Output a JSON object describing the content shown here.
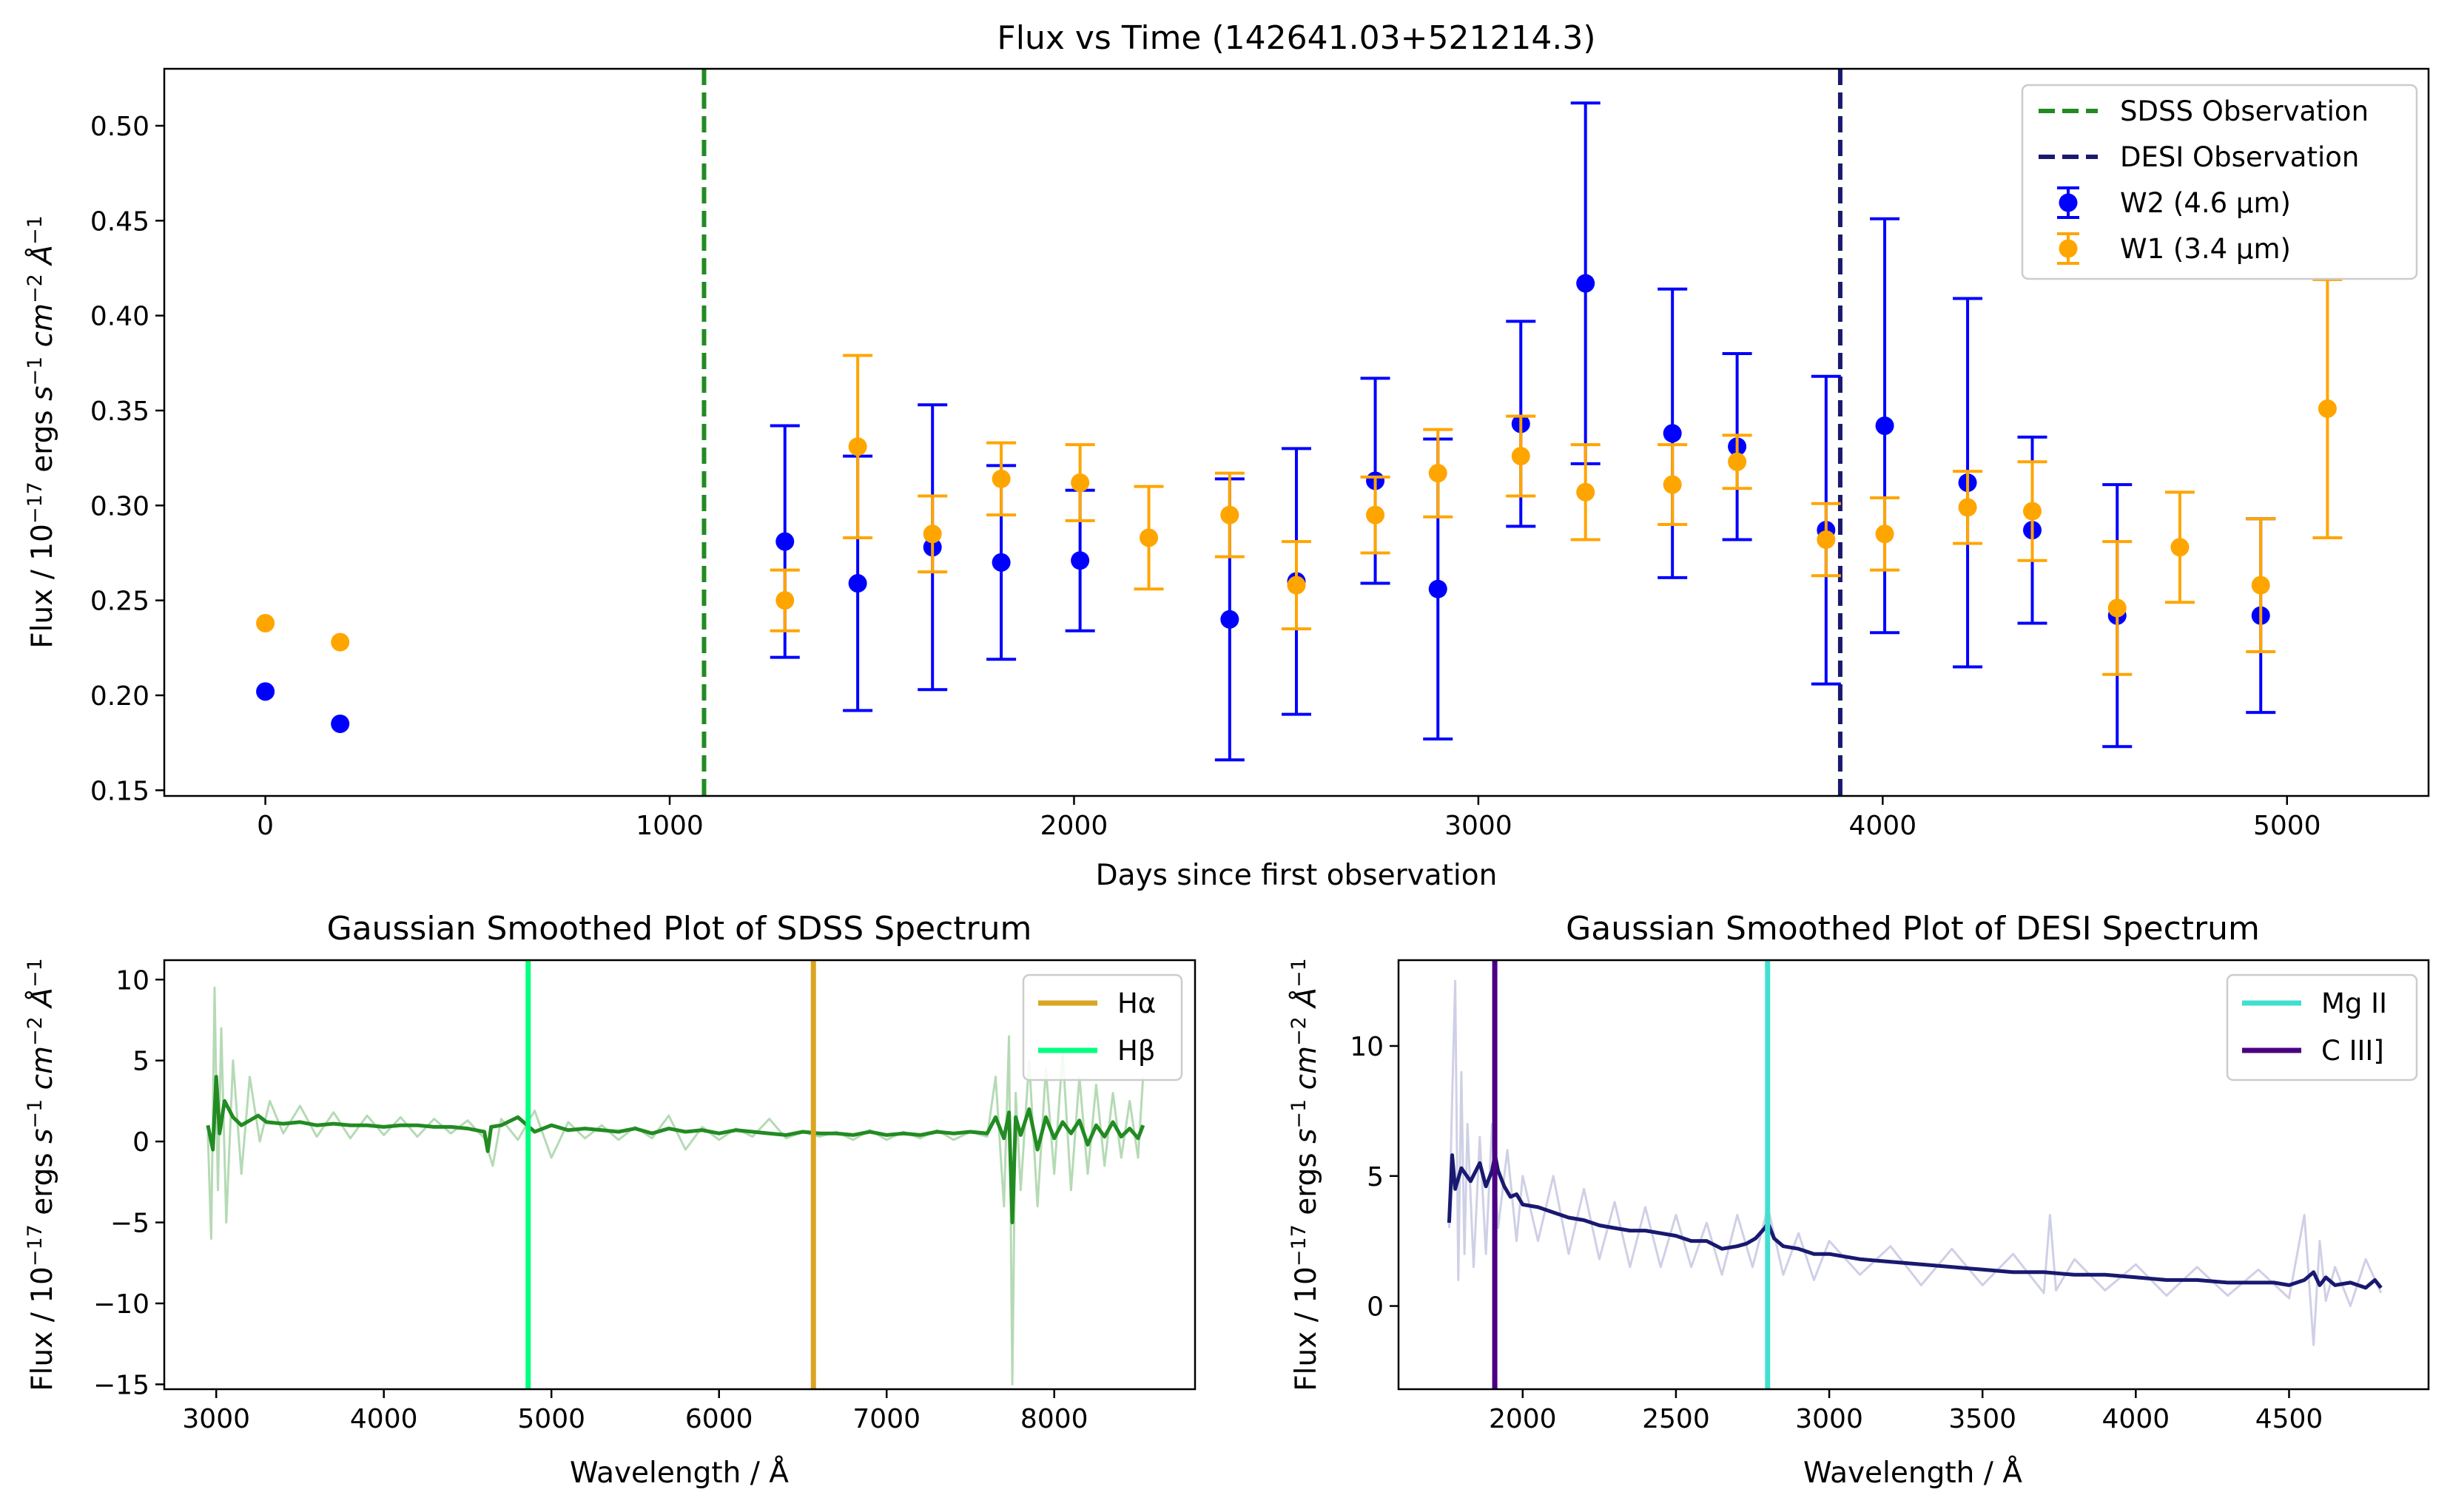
{
  "chart_data": [
    {
      "type": "scatter",
      "title": "Flux vs Time (142641.03+521214.3)",
      "xlabel": "Days since first observation",
      "ylabel_parts": [
        "Flux / 10",
        "−17",
        " ergs ",
        "s",
        "−1",
        " cm",
        "−2",
        " Å",
        "−1"
      ],
      "xlim": [
        -250,
        5350
      ],
      "ylim": [
        0.147,
        0.53
      ],
      "xticks": [
        0,
        1000,
        2000,
        3000,
        4000,
        5000
      ],
      "xtick_labels": [
        "0",
        "1000",
        "2000",
        "3000",
        "4000",
        "5000"
      ],
      "yticks": [
        0.15,
        0.2,
        0.25,
        0.3,
        0.35,
        0.4,
        0.45,
        0.5
      ],
      "ytick_labels": [
        "0.15",
        "0.20",
        "0.25",
        "0.30",
        "0.35",
        "0.40",
        "0.45",
        "0.50"
      ],
      "grid": false,
      "legend_position": "top-right",
      "vlines": [
        {
          "name": "SDSS Observation",
          "x": 1085,
          "color": "#228b22",
          "style": "dashed"
        },
        {
          "name": "DESI Observation",
          "x": 3895,
          "color": "#191970",
          "style": "dashed"
        }
      ],
      "series": [
        {
          "name": "W2 (4.6 µm)",
          "color": "#0000ff",
          "points": [
            {
              "x": 0,
              "y": 0.202,
              "err": 0
            },
            {
              "x": 185,
              "y": 0.185,
              "err": 0
            },
            {
              "x": 1285,
              "y": 0.281,
              "err": 0.061
            },
            {
              "x": 1465,
              "y": 0.259,
              "err": 0.067
            },
            {
              "x": 1650,
              "y": 0.278,
              "err": 0.075
            },
            {
              "x": 1820,
              "y": 0.27,
              "err": 0.051
            },
            {
              "x": 2015,
              "y": 0.271,
              "err": 0.037
            },
            {
              "x": 2385,
              "y": 0.24,
              "err": 0.074
            },
            {
              "x": 2550,
              "y": 0.26,
              "err": 0.07
            },
            {
              "x": 2745,
              "y": 0.313,
              "err": 0.054
            },
            {
              "x": 2900,
              "y": 0.256,
              "err": 0.079
            },
            {
              "x": 3105,
              "y": 0.343,
              "err": 0.054
            },
            {
              "x": 3265,
              "y": 0.417,
              "err": 0.095
            },
            {
              "x": 3480,
              "y": 0.338,
              "err": 0.076
            },
            {
              "x": 3640,
              "y": 0.331,
              "err": 0.049
            },
            {
              "x": 3860,
              "y": 0.287,
              "err": 0.081
            },
            {
              "x": 4005,
              "y": 0.342,
              "err": 0.109
            },
            {
              "x": 4210,
              "y": 0.312,
              "err": 0.097
            },
            {
              "x": 4370,
              "y": 0.287,
              "err": 0.049
            },
            {
              "x": 4580,
              "y": 0.242,
              "err": 0.069
            },
            {
              "x": 4935,
              "y": 0.242,
              "err": 0.051
            }
          ]
        },
        {
          "name": "W1 (3.4 µm)",
          "color": "#ffa500",
          "points": [
            {
              "x": 0,
              "y": 0.238,
              "err": 0
            },
            {
              "x": 185,
              "y": 0.228,
              "err": 0
            },
            {
              "x": 1285,
              "y": 0.25,
              "err": 0.016
            },
            {
              "x": 1465,
              "y": 0.331,
              "err": 0.048
            },
            {
              "x": 1650,
              "y": 0.285,
              "err": 0.02
            },
            {
              "x": 1820,
              "y": 0.314,
              "err": 0.019
            },
            {
              "x": 2015,
              "y": 0.312,
              "err": 0.02
            },
            {
              "x": 2185,
              "y": 0.283,
              "err": 0.027
            },
            {
              "x": 2385,
              "y": 0.295,
              "err": 0.022
            },
            {
              "x": 2550,
              "y": 0.258,
              "err": 0.023
            },
            {
              "x": 2745,
              "y": 0.295,
              "err": 0.02
            },
            {
              "x": 2900,
              "y": 0.317,
              "err": 0.023
            },
            {
              "x": 3105,
              "y": 0.326,
              "err": 0.021
            },
            {
              "x": 3265,
              "y": 0.307,
              "err": 0.025
            },
            {
              "x": 3480,
              "y": 0.311,
              "err": 0.021
            },
            {
              "x": 3640,
              "y": 0.323,
              "err": 0.014
            },
            {
              "x": 3860,
              "y": 0.282,
              "err": 0.019
            },
            {
              "x": 4005,
              "y": 0.285,
              "err": 0.019
            },
            {
              "x": 4210,
              "y": 0.299,
              "err": 0.019
            },
            {
              "x": 4370,
              "y": 0.297,
              "err": 0.026
            },
            {
              "x": 4580,
              "y": 0.246,
              "err": 0.035
            },
            {
              "x": 4735,
              "y": 0.278,
              "err": 0.029
            },
            {
              "x": 4935,
              "y": 0.258,
              "err": 0.035
            },
            {
              "x": 5100,
              "y": 0.351,
              "err": 0.068
            }
          ]
        }
      ]
    },
    {
      "type": "line",
      "title": "Gaussian Smoothed Plot of SDSS Spectrum",
      "xlabel": "Wavelength / Å",
      "ylabel_parts": [
        "Flux / 10",
        "−17",
        " ergs ",
        "s",
        "−1",
        " cm",
        "−2",
        " Å",
        "−1"
      ],
      "xlim": [
        2690,
        8840
      ],
      "ylim": [
        -15.3,
        11.2
      ],
      "xticks": [
        3000,
        4000,
        5000,
        6000,
        7000,
        8000
      ],
      "xtick_labels": [
        "3000",
        "4000",
        "5000",
        "6000",
        "7000",
        "8000"
      ],
      "yticks": [
        -15,
        -10,
        -5,
        0,
        5,
        10
      ],
      "ytick_labels": [
        "−15",
        "−10",
        "−5",
        "0",
        "5",
        "10"
      ],
      "legend_position": "top-right",
      "vlines": [
        {
          "name": "Hα",
          "x": 6563,
          "color": "#daa520"
        },
        {
          "name": "Hβ",
          "x": 4861,
          "color": "#00ff7f"
        }
      ],
      "series": [
        {
          "name": "",
          "role": "raw",
          "color": "#b5dab5",
          "x": [
            2950,
            2970,
            2990,
            3010,
            3030,
            3060,
            3100,
            3150,
            3200,
            3260,
            3320,
            3400,
            3500,
            3600,
            3700,
            3800,
            3900,
            4000,
            4100,
            4200,
            4300,
            4400,
            4500,
            4600,
            4650,
            4700,
            4800,
            4900,
            5000,
            5100,
            5200,
            5300,
            5400,
            5500,
            5600,
            5700,
            5800,
            5900,
            6000,
            6100,
            6200,
            6300,
            6400,
            6500,
            6600,
            6700,
            6800,
            6900,
            7000,
            7100,
            7200,
            7300,
            7400,
            7500,
            7600,
            7650,
            7700,
            7730,
            7750,
            7770,
            7800,
            7850,
            7900,
            7950,
            8000,
            8050,
            8100,
            8150,
            8200,
            8250,
            8300,
            8350,
            8400,
            8450,
            8500,
            8530
          ],
          "y": [
            0.5,
            -6,
            9.5,
            -3,
            7,
            -5,
            5,
            -2,
            4,
            0,
            2.5,
            0.5,
            2.2,
            0.3,
            1.8,
            0.2,
            1.6,
            0.4,
            1.5,
            0.3,
            1.4,
            0.5,
            1.3,
            0.2,
            -1.5,
            1.4,
            0.1,
            1.9,
            -1,
            1.2,
            0.2,
            1,
            0.1,
            0.9,
            0.2,
            1.6,
            -0.5,
            0.9,
            0.1,
            0.8,
            0.3,
            1.4,
            0.2,
            0.6,
            0.3,
            0.6,
            0.1,
            0.7,
            0.1,
            0.6,
            0.2,
            0.7,
            0.1,
            0.6,
            0.3,
            4,
            -4,
            6.5,
            -15,
            3,
            -3,
            5,
            -4,
            4.5,
            -2,
            5.5,
            -3,
            4,
            -2,
            3.5,
            -1.5,
            3,
            -1,
            2.5,
            -1,
            4
          ]
        },
        {
          "name": "",
          "role": "smoothed",
          "color": "#228b22",
          "x": [
            2950,
            2980,
            3000,
            3020,
            3050,
            3100,
            3150,
            3200,
            3250,
            3300,
            3400,
            3500,
            3600,
            3700,
            3800,
            3900,
            4000,
            4100,
            4200,
            4300,
            4400,
            4500,
            4600,
            4620,
            4640,
            4700,
            4800,
            4900,
            5000,
            5100,
            5200,
            5300,
            5400,
            5500,
            5600,
            5700,
            5800,
            5900,
            6000,
            6100,
            6200,
            6300,
            6400,
            6500,
            6600,
            6700,
            6800,
            6900,
            7000,
            7100,
            7200,
            7300,
            7400,
            7500,
            7600,
            7650,
            7700,
            7730,
            7750,
            7770,
            7800,
            7850,
            7900,
            7950,
            8000,
            8050,
            8100,
            8150,
            8200,
            8250,
            8300,
            8350,
            8400,
            8450,
            8500,
            8530
          ],
          "y": [
            1,
            -0.5,
            4,
            0.5,
            2.5,
            1.5,
            1,
            1.3,
            1.6,
            1.2,
            1.1,
            1.2,
            1,
            1.1,
            1,
            1,
            0.9,
            1,
            1,
            0.9,
            0.9,
            0.8,
            0.6,
            -0.6,
            0.9,
            1,
            1.5,
            0.6,
            1,
            0.7,
            0.8,
            0.7,
            0.6,
            0.8,
            0.5,
            0.8,
            0.6,
            0.7,
            0.5,
            0.7,
            0.6,
            0.5,
            0.4,
            0.6,
            0.5,
            0.5,
            0.4,
            0.6,
            0.4,
            0.5,
            0.4,
            0.6,
            0.5,
            0.6,
            0.5,
            1.5,
            0.2,
            1.8,
            -5,
            1.5,
            0.4,
            2,
            -0.5,
            1.5,
            0.2,
            1.2,
            0.5,
            1.3,
            -0.2,
            1,
            0.3,
            1.2,
            0.3,
            0.8,
            0.2,
            1
          ]
        }
      ]
    },
    {
      "type": "line",
      "title": "Gaussian Smoothed Plot of DESI Spectrum",
      "xlabel": "Wavelength / Å",
      "ylabel_parts": [
        "Flux / 10",
        "−17",
        " ergs ",
        "s",
        "−1",
        " cm",
        "−2",
        " Å",
        "−1"
      ],
      "xlim": [
        1595,
        4955
      ],
      "ylim": [
        -3.2,
        13.3
      ],
      "xticks": [
        2000,
        2500,
        3000,
        3500,
        4000,
        4500
      ],
      "xtick_labels": [
        "2000",
        "2500",
        "3000",
        "3500",
        "4000",
        "4500"
      ],
      "yticks": [
        0,
        5,
        10
      ],
      "ytick_labels": [
        "0",
        "5",
        "10"
      ],
      "legend_position": "top-right",
      "vlines": [
        {
          "name": "Mg II",
          "x": 2799,
          "color": "#40e0d0"
        },
        {
          "name": "C III]",
          "x": 1909,
          "color": "#4b0082"
        }
      ],
      "series": [
        {
          "name": "",
          "role": "raw",
          "color": "#cfd0e6",
          "x": [
            1760,
            1770,
            1780,
            1790,
            1800,
            1810,
            1820,
            1840,
            1860,
            1880,
            1900,
            1920,
            1950,
            1980,
            2000,
            2050,
            2100,
            2150,
            2200,
            2250,
            2300,
            2350,
            2400,
            2450,
            2500,
            2550,
            2600,
            2650,
            2700,
            2750,
            2800,
            2850,
            2900,
            2950,
            3000,
            3100,
            3200,
            3300,
            3400,
            3500,
            3600,
            3700,
            3720,
            3740,
            3800,
            3900,
            4000,
            4100,
            4200,
            4300,
            4400,
            4500,
            4550,
            4580,
            4600,
            4620,
            4650,
            4700,
            4750,
            4800
          ],
          "y": [
            3,
            8,
            12.5,
            1,
            9,
            2,
            7,
            1.5,
            6.5,
            2,
            7,
            3,
            6,
            2.5,
            5,
            2.5,
            5,
            2,
            4.5,
            1.8,
            4,
            1.5,
            3.8,
            1.5,
            3.5,
            1.5,
            3.2,
            1.2,
            3.5,
            1.5,
            3.8,
            1.2,
            2.8,
            1,
            2.5,
            1.2,
            2.3,
            0.8,
            2.2,
            0.8,
            2,
            0.5,
            3.5,
            0.6,
            1.8,
            0.6,
            1.6,
            0.4,
            1.5,
            0.4,
            1.4,
            0.3,
            3.5,
            -1.5,
            2.5,
            0.2,
            1.5,
            0,
            1.8,
            0.5
          ]
        },
        {
          "name": "",
          "role": "smoothed",
          "color": "#191970",
          "x": [
            1760,
            1770,
            1780,
            1800,
            1830,
            1860,
            1880,
            1900,
            1910,
            1920,
            1940,
            1960,
            1980,
            2000,
            2050,
            2100,
            2150,
            2200,
            2250,
            2300,
            2350,
            2400,
            2450,
            2500,
            2550,
            2600,
            2650,
            2700,
            2730,
            2760,
            2790,
            2800,
            2820,
            2850,
            2900,
            2950,
            3000,
            3100,
            3200,
            3300,
            3400,
            3500,
            3600,
            3700,
            3800,
            3900,
            4000,
            4100,
            4200,
            4300,
            4400,
            4450,
            4500,
            4550,
            4580,
            4600,
            4620,
            4650,
            4700,
            4750,
            4780,
            4800
          ],
          "y": [
            3.2,
            5.8,
            4.5,
            5.3,
            4.8,
            5.5,
            4.6,
            5.2,
            5.8,
            5.2,
            4.6,
            4.2,
            4.3,
            3.9,
            3.8,
            3.6,
            3.4,
            3.3,
            3.1,
            3,
            2.9,
            2.9,
            2.8,
            2.7,
            2.5,
            2.5,
            2.2,
            2.3,
            2.4,
            2.6,
            3,
            3.2,
            2.6,
            2.3,
            2.2,
            2,
            2,
            1.8,
            1.7,
            1.6,
            1.5,
            1.4,
            1.3,
            1.3,
            1.2,
            1.2,
            1.1,
            1,
            1,
            0.9,
            0.9,
            0.9,
            0.8,
            1,
            1.3,
            0.8,
            1.1,
            0.8,
            0.9,
            0.7,
            1,
            0.7
          ]
        }
      ]
    }
  ]
}
